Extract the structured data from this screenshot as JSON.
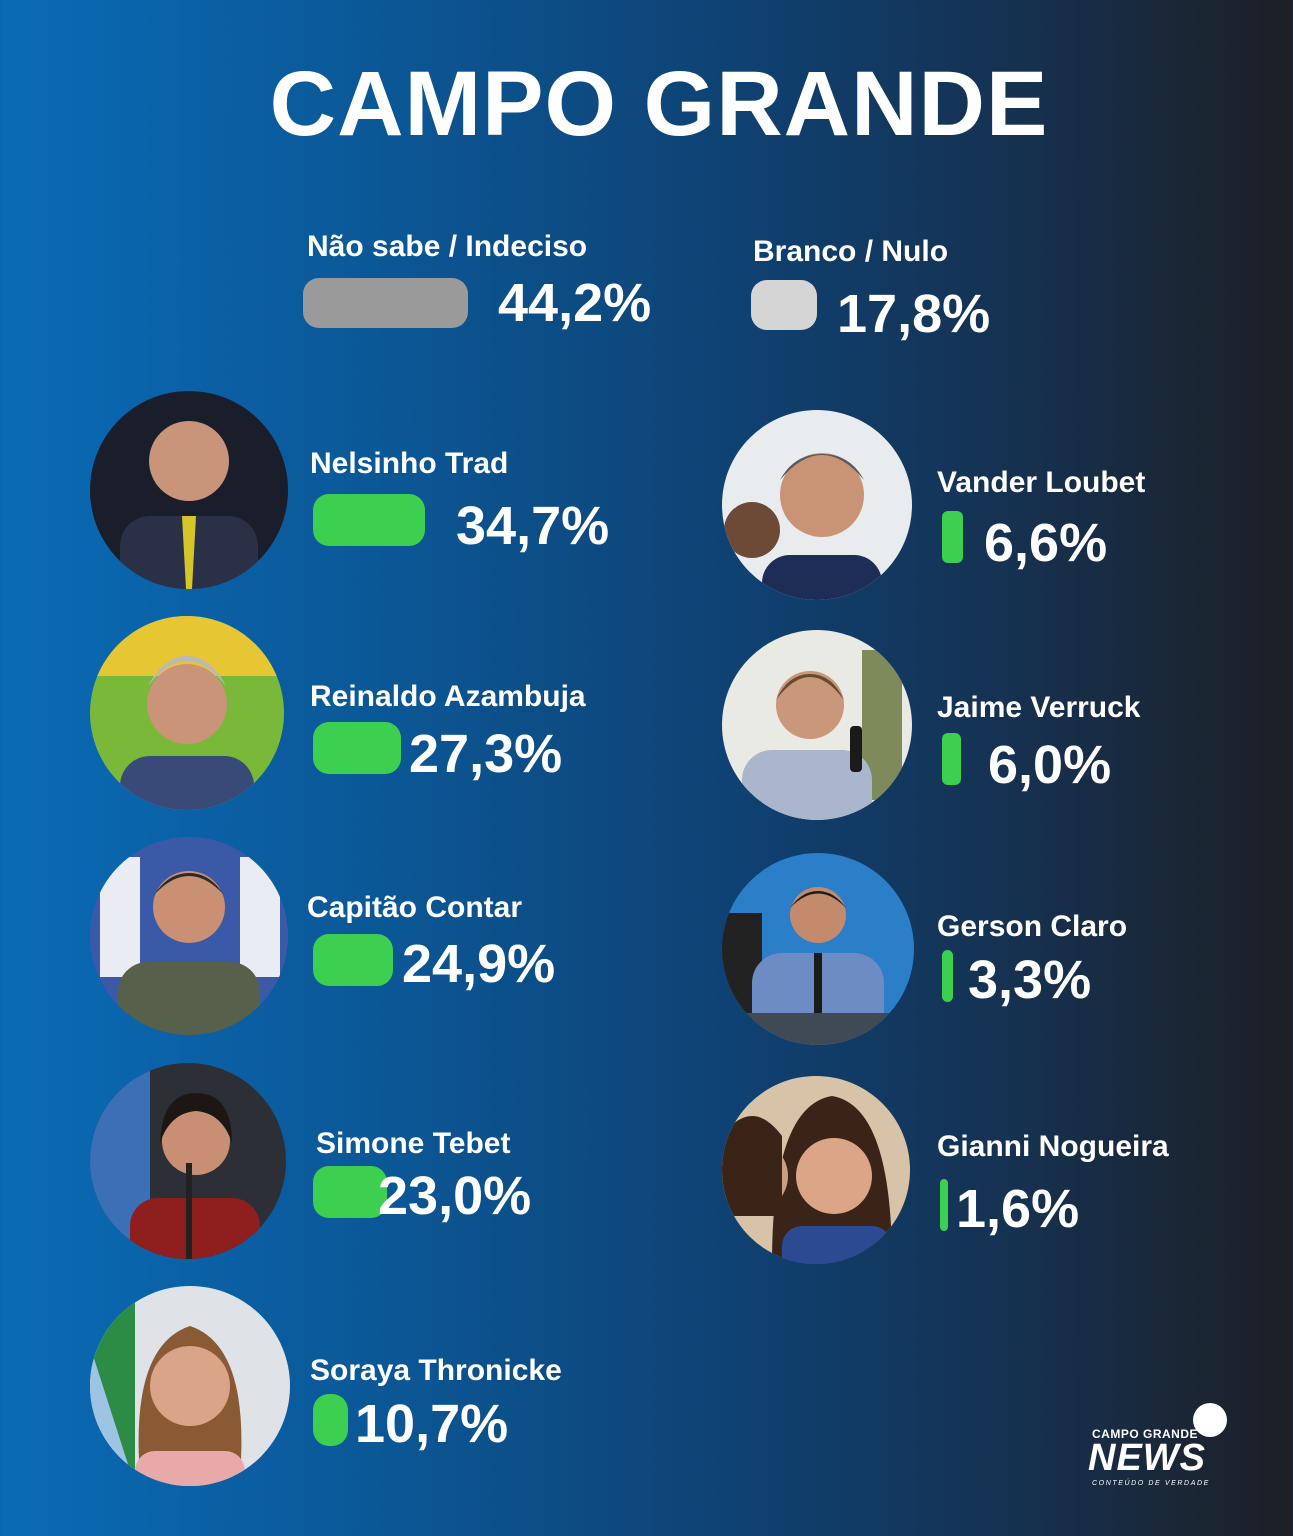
{
  "header": {
    "title": "CAMPO GRANDE"
  },
  "colors": {
    "candidate_bar": "#3ccf50",
    "undecided_bar": "#9a9a9a",
    "blank_bar": "#d5d5d5",
    "background_left": "#0a6bb5",
    "background_right": "#1d1f24"
  },
  "chart_data": {
    "type": "bar",
    "title": "CAMPO GRANDE",
    "unit": "%",
    "summary": [
      {
        "name": "Não sabe / Indeciso",
        "value": 44.2,
        "label": "44,2%"
      },
      {
        "name": "Branco / Nulo",
        "value": 17.8,
        "label": "17,8%"
      }
    ],
    "candidates": [
      {
        "name": "Nelsinho Trad",
        "value": 34.7,
        "label": "34,7%"
      },
      {
        "name": "Reinaldo Azambuja",
        "value": 27.3,
        "label": "27,3%"
      },
      {
        "name": "Capitão Contar",
        "value": 24.9,
        "label": "24,9%"
      },
      {
        "name": "Simone Tebet",
        "value": 23.0,
        "label": "23,0%"
      },
      {
        "name": "Soraya Thronicke",
        "value": 10.7,
        "label": "10,7%"
      },
      {
        "name": "Vander Loubet",
        "value": 6.6,
        "label": "6,6%"
      },
      {
        "name": "Jaime Verruck",
        "value": 6.0,
        "label": "6,0%"
      },
      {
        "name": "Gerson Claro",
        "value": 3.3,
        "label": "3,3%"
      },
      {
        "name": "Gianni Nogueira",
        "value": 1.6,
        "label": "1,6%"
      }
    ]
  },
  "logo": {
    "top_text": "CAMPO GRANDE",
    "main_text": "NEWS",
    "tagline": "CONTEÚDO DE VERDADE"
  }
}
